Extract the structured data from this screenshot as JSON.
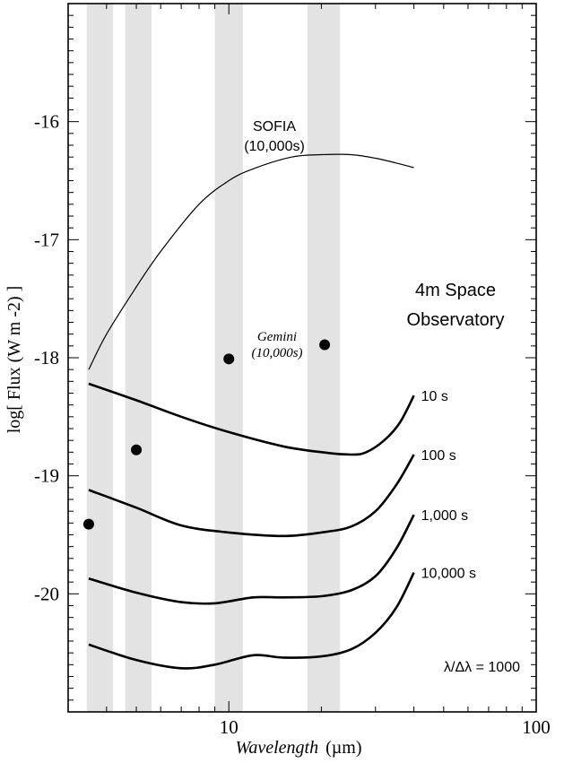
{
  "chart_data": {
    "type": "line",
    "xlabel": "Wavelength",
    "xlabel_unit": "(µm)",
    "ylabel": "log[ Flux (W m -2) ]",
    "x_scale": "log",
    "xlim": [
      3,
      100
    ],
    "ylim": [
      -21.0,
      -15.0
    ],
    "x_ticks": [
      10,
      100
    ],
    "x_tick_labels": [
      "10",
      "100"
    ],
    "y_ticks": [
      -20,
      -19,
      -18,
      -17,
      -16
    ],
    "y_tick_labels": [
      "-20",
      "-19",
      "-18",
      "-17",
      "-16"
    ],
    "bands": [
      [
        3.45,
        4.2
      ],
      [
        4.6,
        5.6
      ],
      [
        9.0,
        11.1
      ],
      [
        18.0,
        23.0
      ]
    ],
    "series": [
      {
        "name": "SOFIA (10,000s)",
        "x": [
          3.5,
          4.0,
          5.0,
          6.0,
          8.0,
          10.0,
          12.0,
          16.0,
          20.0,
          25.0,
          30.0,
          35.0,
          40.0
        ],
        "y": [
          -18.1,
          -17.8,
          -17.4,
          -17.1,
          -16.7,
          -16.5,
          -16.4,
          -16.3,
          -16.28,
          -16.28,
          -16.31,
          -16.35,
          -16.39
        ]
      },
      {
        "name": "10 s",
        "x": [
          3.5,
          5.0,
          7.0,
          10.0,
          15.0,
          20.0,
          25.0,
          28.0,
          32.0,
          36.0,
          40.0
        ],
        "y": [
          -18.22,
          -18.36,
          -18.5,
          -18.63,
          -18.75,
          -18.8,
          -18.82,
          -18.8,
          -18.7,
          -18.55,
          -18.32
        ]
      },
      {
        "name": "100 s",
        "x": [
          3.5,
          5.0,
          7.0,
          10.0,
          15.0,
          20.0,
          25.0,
          30.0,
          35.0,
          40.0
        ],
        "y": [
          -19.12,
          -19.27,
          -19.42,
          -19.48,
          -19.51,
          -19.48,
          -19.43,
          -19.3,
          -19.08,
          -18.82
        ]
      },
      {
        "name": "1,000 s",
        "x": [
          3.5,
          5.0,
          7.0,
          9.0,
          12.0,
          15.0,
          20.0,
          25.0,
          30.0,
          35.0,
          40.0
        ],
        "y": [
          -19.87,
          -19.99,
          -20.07,
          -20.08,
          -20.03,
          -20.03,
          -20.02,
          -19.97,
          -19.85,
          -19.62,
          -19.33
        ]
      },
      {
        "name": "10,000 s",
        "x": [
          3.5,
          5.0,
          7.0,
          9.0,
          12.0,
          15.0,
          20.0,
          25.0,
          30.0,
          35.0,
          40.0
        ],
        "y": [
          -20.43,
          -20.56,
          -20.63,
          -20.6,
          -20.52,
          -20.54,
          -20.53,
          -20.47,
          -20.33,
          -20.12,
          -19.82
        ]
      }
    ],
    "points": [
      {
        "x": 3.5,
        "y": -19.41
      },
      {
        "x": 5.0,
        "y": -18.78
      },
      {
        "x": 10.0,
        "y": -18.01
      },
      {
        "x": 20.5,
        "y": -17.89
      }
    ],
    "annotations": {
      "sofia_line1": "SOFIA",
      "sofia_line2": "(10,000s)",
      "gemini_line1": "Gemini",
      "gemini_line2": "(10,000s)",
      "observatory_line1": "4m Space",
      "observatory_line2": "Observatory",
      "resolution": "λ/Δλ = 1000"
    }
  }
}
